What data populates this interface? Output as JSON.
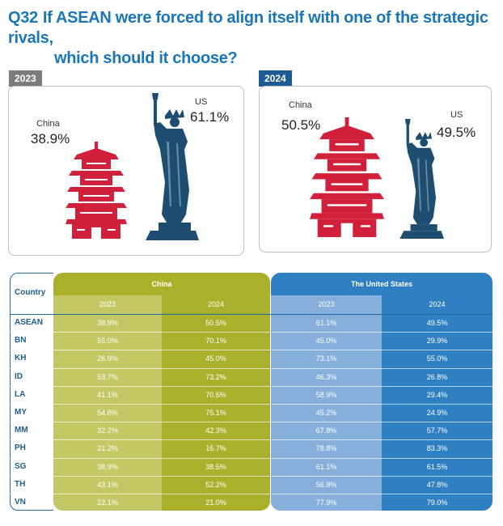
{
  "header": {
    "qnum": "Q32",
    "title_line1": "If ASEAN were forced to align itself with one of the strategic rivals,",
    "title_line2": "which should it choose?"
  },
  "panels": {
    "p2023": {
      "tag": "2023",
      "china_label": "China",
      "china_pct": "38.9%",
      "us_label": "US",
      "us_pct": "61.1%"
    },
    "p2024": {
      "tag": "2024",
      "china_label": "China",
      "china_pct": "50.5%",
      "us_label": "US",
      "us_pct": "49.5%"
    }
  },
  "colors": {
    "title": "#1a76b8",
    "china_bg": "#aab02c",
    "china_light": "#c3c865",
    "us_bg": "#2f7fc3",
    "us_light": "#86b0db",
    "pagoda": "#d1203c",
    "statue": "#1d4e72"
  },
  "table": {
    "country_header": "Country",
    "group_china": "China",
    "group_us": "The United States",
    "years": [
      "2023",
      "2024",
      "2023",
      "2024"
    ]
  },
  "chart_data": {
    "type": "table",
    "title": "If ASEAN were forced to align itself with one of the strategic rivals, which should it choose?",
    "columns": [
      "China 2023",
      "China 2024",
      "The United States 2023",
      "The United States 2024"
    ],
    "rows": [
      {
        "country": "ASEAN",
        "values": [
          "38.9%",
          "50.5%",
          "61.1%",
          "49.5%"
        ]
      },
      {
        "country": "BN",
        "values": [
          "55.0%",
          "70.1%",
          "45.0%",
          "29.9%"
        ]
      },
      {
        "country": "KH",
        "values": [
          "26.9%",
          "45.0%",
          "73.1%",
          "55.0%"
        ]
      },
      {
        "country": "ID",
        "values": [
          "53.7%",
          "73.2%",
          "46.3%",
          "26.8%"
        ]
      },
      {
        "country": "LA",
        "values": [
          "41.1%",
          "70.6%",
          "58.9%",
          "29.4%"
        ]
      },
      {
        "country": "MY",
        "values": [
          "54.8%",
          "75.1%",
          "45.2%",
          "24.9%"
        ]
      },
      {
        "country": "MM",
        "values": [
          "32.2%",
          "42.3%",
          "67.8%",
          "57.7%"
        ]
      },
      {
        "country": "PH",
        "values": [
          "21.2%",
          "16.7%",
          "78.8%",
          "83.3%"
        ]
      },
      {
        "country": "SG",
        "values": [
          "38.9%",
          "38.5%",
          "61.1%",
          "61.5%"
        ]
      },
      {
        "country": "TH",
        "values": [
          "43.1%",
          "52.2%",
          "56.9%",
          "47.8%"
        ]
      },
      {
        "country": "VN",
        "values": [
          "22.1%",
          "21.0%",
          "77.9%",
          "79.0%"
        ]
      }
    ]
  }
}
